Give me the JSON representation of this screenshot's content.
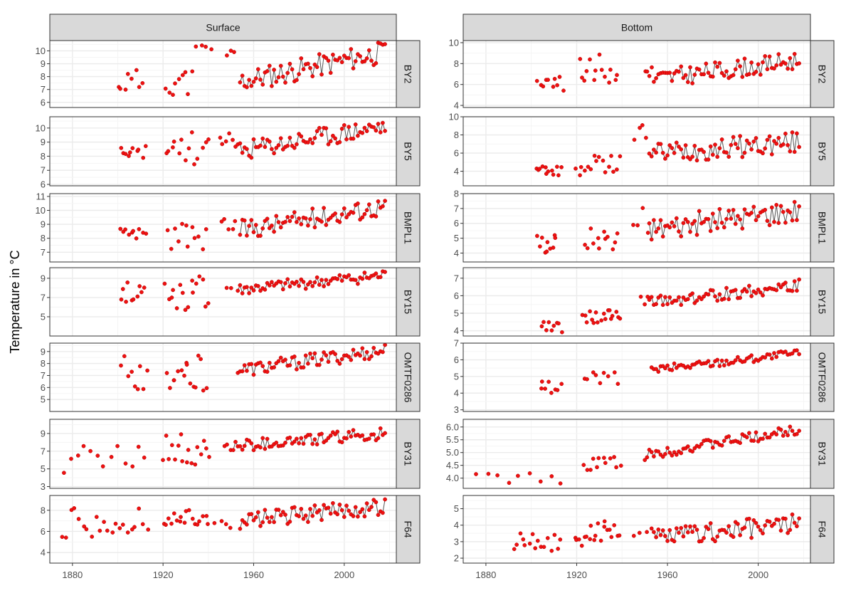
{
  "ylabel": "Temperature in °C",
  "columns": [
    "Surface",
    "Bottom"
  ],
  "rows": [
    "BY2",
    "BY5",
    "BMPL1",
    "BY15",
    "OMTF0286",
    "BY31",
    "F64"
  ],
  "x_ticks": [
    1880,
    1920,
    1960,
    2000
  ],
  "xlim": [
    1870,
    2023
  ],
  "colors": {
    "point": "#ee1111",
    "point_stroke": "#b30000",
    "line": "#555555",
    "strip": "#d9d9d9",
    "grid_major": "#ebebeb",
    "grid_minor": "#f5f5f5"
  },
  "chart_data": {
    "type": "scatter",
    "note_series": "Each panel: early years shown as isolated points, later years shown as points joined by a line.",
    "panels": [
      {
        "column": "Surface",
        "row": "BY2",
        "ylim": [
          5.6,
          10.8
        ],
        "yticks": [
          6,
          7,
          8,
          9,
          10
        ],
        "seed": 11,
        "early": [
          1900,
          1911,
          7.6,
          1.0,
          8
        ],
        "early2": [
          1921,
          1933,
          7.6,
          1.1,
          9
        ],
        "early3": [
          1935,
          1941,
          10.0,
          0.6,
          4
        ],
        "early4": [
          1948,
          1951,
          9.8,
          0.4,
          3
        ],
        "line": [
          1954,
          2018,
          7.6,
          9.9,
          0.9
        ]
      },
      {
        "column": "Surface",
        "row": "BY5",
        "ylim": [
          5.9,
          10.8
        ],
        "yticks": [
          6,
          7,
          8,
          9,
          10
        ],
        "seed": 23,
        "early": [
          1901,
          1912,
          8.1,
          0.7,
          10
        ],
        "early2": [
          1921,
          1940,
          8.6,
          1.2,
          14
        ],
        "early3": [
          1945,
          1951,
          9.0,
          0.8,
          5
        ],
        "line": [
          1952,
          2018,
          8.3,
          10.1,
          0.7
        ]
      },
      {
        "column": "Surface",
        "row": "BMPL1",
        "ylim": [
          6.3,
          11.2
        ],
        "yticks": [
          7,
          8,
          9,
          10,
          11
        ],
        "seed": 37,
        "early": [
          1901,
          1912,
          8.0,
          0.7,
          10
        ],
        "early2": [
          1922,
          1939,
          8.2,
          1.0,
          12
        ],
        "early3": [
          1946,
          1952,
          9.0,
          0.5,
          5
        ],
        "line": [
          1954,
          2018,
          8.6,
          10.3,
          0.7
        ]
      },
      {
        "column": "Surface",
        "row": "BY15",
        "ylim": [
          3.0,
          10.1
        ],
        "yticks": [
          5,
          7,
          9
        ],
        "seed": 41,
        "early": [
          1901,
          1912,
          7.6,
          1.2,
          10
        ],
        "early2": [
          1921,
          1940,
          7.4,
          1.8,
          16
        ],
        "early3": [
          1948,
          1950,
          8.0,
          0.3,
          2
        ],
        "line": [
          1953,
          2018,
          7.8,
          9.3,
          0.6
        ]
      },
      {
        "column": "Surface",
        "row": "OMTF0286",
        "ylim": [
          4.0,
          9.7
        ],
        "yticks": [
          5,
          6,
          7,
          8,
          9
        ],
        "seed": 53,
        "early": [
          1902,
          1913,
          7.2,
          1.5,
          9
        ],
        "early2": [
          1922,
          1939,
          7.2,
          1.5,
          16
        ],
        "line": [
          1953,
          2018,
          7.4,
          9.1,
          0.6
        ]
      },
      {
        "column": "Surface",
        "row": "BY31",
        "ylim": [
          2.8,
          10.6
        ],
        "yticks": [
          3,
          5,
          7,
          9
        ],
        "seed": 61,
        "early": [
          1876,
          1912,
          6.0,
          1.7,
          13
        ],
        "early2": [
          1920,
          1940,
          7.2,
          1.9,
          17
        ],
        "early3": [
          1947,
          1950,
          7.5,
          0.6,
          3
        ],
        "line": [
          1951,
          2018,
          7.6,
          9.0,
          0.7
        ]
      },
      {
        "column": "Surface",
        "row": "F64",
        "ylim": [
          3.0,
          9.4
        ],
        "yticks": [
          4,
          6,
          8
        ],
        "seed": 71,
        "early": [
          1876,
          1913,
          6.8,
          1.4,
          22
        ],
        "early2": [
          1920,
          1940,
          7.2,
          0.9,
          18
        ],
        "early3": [
          1943,
          1950,
          6.8,
          0.6,
          4
        ],
        "line": [
          1954,
          2018,
          7.0,
          8.4,
          0.8
        ]
      },
      {
        "column": "Bottom",
        "row": "BY2",
        "ylim": [
          3.8,
          10.2
        ],
        "yticks": [
          4,
          6,
          8,
          10
        ],
        "seed": 83,
        "early": [
          1903,
          1914,
          6.2,
          0.9,
          10
        ],
        "early2": [
          1921,
          1938,
          7.5,
          1.4,
          14
        ],
        "early3": [
          1950,
          1953,
          7.3,
          0.6,
          4
        ],
        "line": [
          1954,
          2018,
          6.5,
          8.3,
          0.9
        ]
      },
      {
        "column": "Bottom",
        "row": "BY5",
        "ylim": [
          2.4,
          10.0
        ],
        "yticks": [
          4,
          6,
          8,
          10
        ],
        "seed": 97,
        "early": [
          1902,
          1913,
          4.0,
          0.7,
          12
        ],
        "early2": [
          1920,
          1939,
          4.7,
          1.2,
          16
        ],
        "early3": [
          1946,
          1951,
          8.2,
          0.9,
          4
        ],
        "line": [
          1952,
          2018,
          6.0,
          7.2,
          1.2
        ]
      },
      {
        "column": "Bottom",
        "row": "BMPL1",
        "ylim": [
          3.4,
          8.0
        ],
        "yticks": [
          4,
          5,
          6,
          7,
          8
        ],
        "seed": 101,
        "early": [
          1903,
          1911,
          4.6,
          0.7,
          10
        ],
        "early2": [
          1924,
          1938,
          4.9,
          0.8,
          12
        ],
        "early3": [
          1945,
          1951,
          6.0,
          1.3,
          4
        ],
        "line": [
          1952,
          2018,
          5.6,
          6.9,
          0.8
        ]
      },
      {
        "column": "Bottom",
        "row": "BY15",
        "ylim": [
          3.7,
          7.6
        ],
        "yticks": [
          4,
          5,
          6,
          7
        ],
        "seed": 113,
        "early": [
          1905,
          1913,
          4.3,
          0.4,
          9
        ],
        "early2": [
          1923,
          1939,
          4.8,
          0.4,
          18
        ],
        "early3": [
          1948,
          1951,
          5.8,
          0.3,
          3
        ],
        "line": [
          1952,
          2018,
          5.6,
          6.6,
          0.35
        ]
      },
      {
        "column": "Bottom",
        "row": "OMTF0286",
        "ylim": [
          2.9,
          7.0
        ],
        "yticks": [
          3,
          4,
          5,
          6,
          7
        ],
        "seed": 127,
        "early": [
          1904,
          1913,
          4.2,
          0.5,
          8
        ],
        "early2": [
          1923,
          1938,
          4.9,
          0.4,
          9
        ],
        "line": [
          1953,
          2018,
          5.4,
          6.4,
          0.25
        ]
      },
      {
        "column": "Bottom",
        "row": "BY31",
        "ylim": [
          3.6,
          6.3
        ],
        "yticks": [
          4.0,
          4.5,
          5.0,
          5.5,
          6.0
        ],
        "seed": 131,
        "early": [
          1876,
          1913,
          4.0,
          0.3,
          9
        ],
        "early2": [
          1923,
          1939,
          4.6,
          0.3,
          12
        ],
        "line": [
          1950,
          2018,
          4.9,
          5.9,
          0.2
        ]
      },
      {
        "column": "Bottom",
        "row": "F64",
        "ylim": [
          1.7,
          5.8
        ],
        "yticks": [
          2,
          3,
          4,
          5
        ],
        "seed": 139,
        "early": [
          1892,
          1913,
          3.0,
          0.6,
          16
        ],
        "early2": [
          1919,
          1939,
          3.5,
          0.8,
          20
        ],
        "early3": [
          1945,
          1951,
          3.6,
          0.3,
          3
        ],
        "line": [
          1953,
          2018,
          3.2,
          4.1,
          0.6
        ]
      }
    ]
  }
}
